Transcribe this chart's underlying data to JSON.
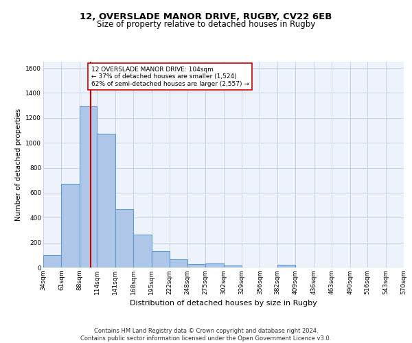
{
  "title1": "12, OVERSLADE MANOR DRIVE, RUGBY, CV22 6EB",
  "title2": "Size of property relative to detached houses in Rugby",
  "xlabel": "Distribution of detached houses by size in Rugby",
  "ylabel": "Number of detached properties",
  "bin_labels": [
    "34sqm",
    "61sqm",
    "88sqm",
    "114sqm",
    "141sqm",
    "168sqm",
    "195sqm",
    "222sqm",
    "248sqm",
    "275sqm",
    "302sqm",
    "329sqm",
    "356sqm",
    "382sqm",
    "409sqm",
    "436sqm",
    "463sqm",
    "490sqm",
    "516sqm",
    "543sqm",
    "570sqm"
  ],
  "bin_edges": [
    34,
    61,
    88,
    114,
    141,
    168,
    195,
    222,
    248,
    275,
    302,
    329,
    356,
    382,
    409,
    436,
    463,
    490,
    516,
    543,
    570
  ],
  "bar_heights": [
    97,
    670,
    1290,
    1070,
    465,
    265,
    130,
    65,
    30,
    35,
    15,
    0,
    0,
    20,
    0,
    0,
    0,
    0,
    0,
    0
  ],
  "bar_color": "#aec6e8",
  "bar_edge_color": "#5b9bd5",
  "bar_edge_width": 0.8,
  "grid_color": "#c8d4e8",
  "bg_color": "#eef2fa",
  "property_size": 104,
  "red_line_color": "#cc0000",
  "annotation_text": "12 OVERSLADE MANOR DRIVE: 104sqm\n← 37% of detached houses are smaller (1,524)\n62% of semi-detached houses are larger (2,557) →",
  "annotation_box_color": "#ffffff",
  "annotation_box_edge": "#cc0000",
  "ylim": [
    0,
    1650
  ],
  "yticks": [
    0,
    200,
    400,
    600,
    800,
    1000,
    1200,
    1400,
    1600
  ],
  "footer": "Contains HM Land Registry data © Crown copyright and database right 2024.\nContains public sector information licensed under the Open Government Licence v3.0.",
  "title1_fontsize": 9.5,
  "title2_fontsize": 8.5,
  "xlabel_fontsize": 8,
  "ylabel_fontsize": 7.5,
  "tick_fontsize": 6.5,
  "annotation_fontsize": 6.5,
  "footer_fontsize": 6
}
